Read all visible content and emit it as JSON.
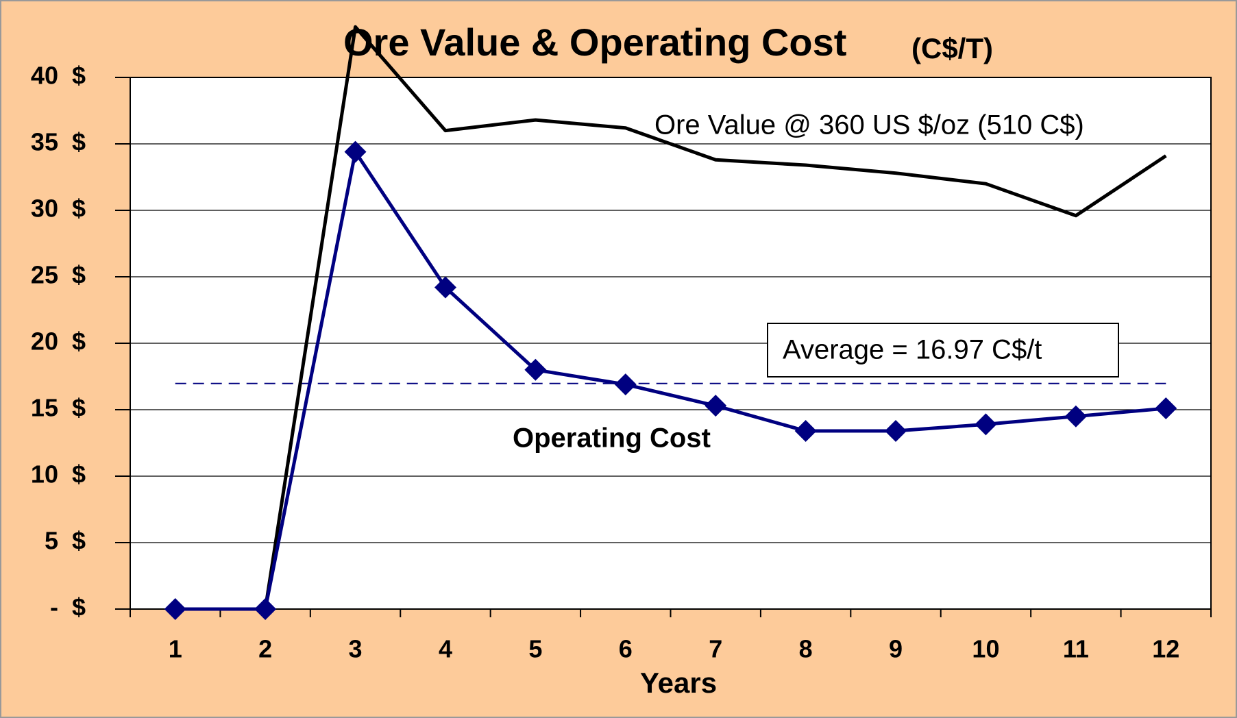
{
  "chart_data": {
    "type": "line",
    "title": "Ore Value & Operating Cost",
    "subtitle": "(C$/T)",
    "x_label": "Years",
    "categories": [
      "1",
      "2",
      "3",
      "4",
      "5",
      "6",
      "7",
      "8",
      "9",
      "10",
      "11",
      "12"
    ],
    "series": [
      {
        "name": "Ore Value @ 360 US $/oz (510 C$)",
        "color": "#000000",
        "values": [
          0,
          0,
          43.8,
          36.0,
          36.8,
          36.2,
          33.8,
          33.4,
          32.8,
          32.0,
          29.6,
          34.1
        ]
      },
      {
        "name": "Operating Cost",
        "color": "#000080",
        "marker": "diamond",
        "values": [
          0,
          0,
          34.4,
          24.2,
          18.0,
          16.9,
          15.3,
          13.4,
          13.4,
          13.9,
          14.5,
          15.1
        ]
      }
    ],
    "average": {
      "value": 16.97,
      "label": "Average = 16.97 C$/t",
      "color": "#000080"
    },
    "ylim": [
      0,
      40
    ],
    "yticks": [
      {
        "value": 0,
        "label": "-  $"
      },
      {
        "value": 5,
        "label": "5  $"
      },
      {
        "value": 10,
        "label": "10  $"
      },
      {
        "value": 15,
        "label": "15  $"
      },
      {
        "value": 20,
        "label": "20  $"
      },
      {
        "value": 25,
        "label": "25  $"
      },
      {
        "value": 30,
        "label": "30  $"
      },
      {
        "value": 35,
        "label": "35  $"
      },
      {
        "value": 40,
        "label": "40  $"
      }
    ],
    "grid": true
  }
}
